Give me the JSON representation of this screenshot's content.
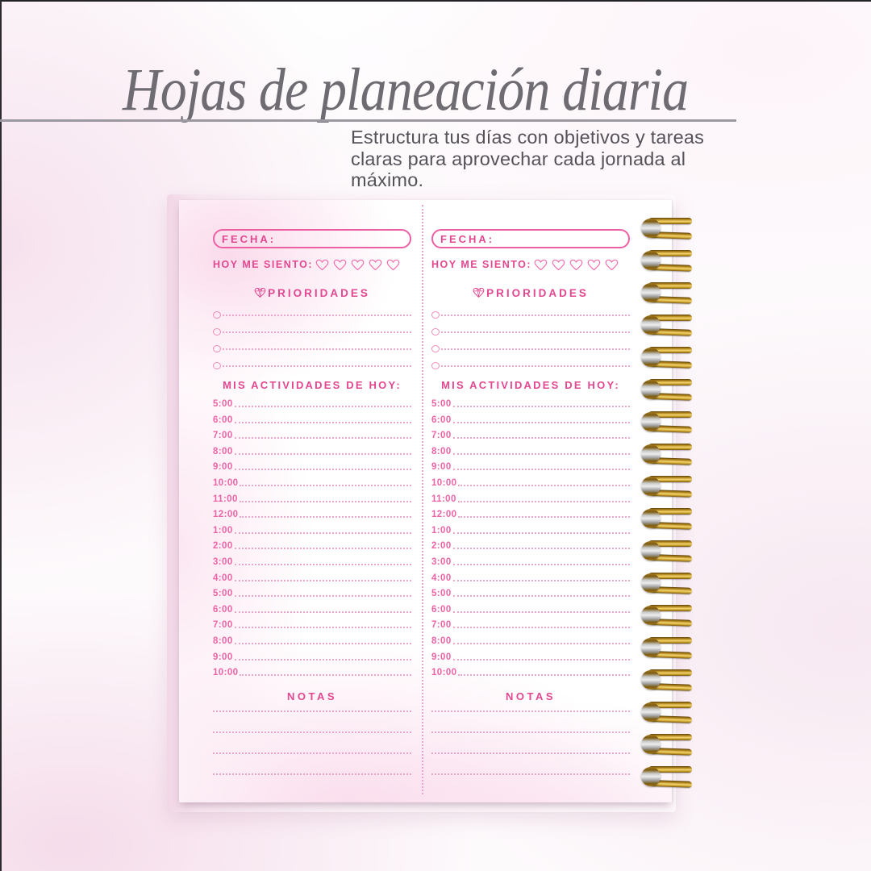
{
  "header": {
    "title": "Hojas de planeación diaria",
    "subtitle": "Estructura tus días con objetivos y tareas claras para aprovechar cada jornada al máximo."
  },
  "planner": {
    "date_label": "FECHA:",
    "feeling_label": "HOY ME SIENTO:",
    "hearts_count": 5,
    "priorities_title": "PRIORIDADES",
    "priorities_rows": 4,
    "activities_title": "MIS ACTIVIDADES DE HOY:",
    "time_slots": [
      "5:00",
      "6:00",
      "7:00",
      "8:00",
      "9:00",
      "10:00",
      "11:00",
      "12:00",
      "1:00",
      "2:00",
      "3:00",
      "4:00",
      "5:00",
      "6:00",
      "7:00",
      "8:00",
      "9:00",
      "10:00"
    ],
    "notes_title": "NOTAS",
    "notes_lines": 4
  },
  "binding": {
    "rings": 18
  },
  "colors": {
    "accent_pink": "#e2478f",
    "time_pink": "#ed64a6",
    "pill_pink": "#ec5fa3",
    "heart_pink": "#ef6fae",
    "bullet_pink": "#ef8aba",
    "dot_pink": "#eba6cb",
    "title_gray": "#6e6b72",
    "subtitle_gray": "#55525a",
    "gold": "#c9961c"
  }
}
